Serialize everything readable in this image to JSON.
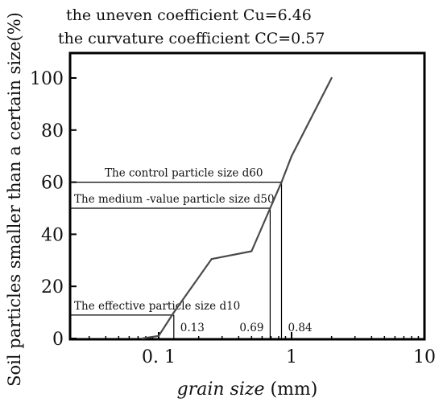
{
  "chart_data": {
    "type": "line",
    "title_lines": [
      "the uneven coefficient Cu=6.46",
      "the curvature coefficient CC=0.57"
    ],
    "xlabel_italic": "grain size",
    "xlabel_unit": "(mm)",
    "ylabel": "Soil particles smaller than a certain size(%)",
    "xscale": "log",
    "xlim": [
      0.02,
      10
    ],
    "ylim": [
      0,
      110
    ],
    "grid": false,
    "xticks": [
      {
        "value": 0.1,
        "label": "0. 1"
      },
      {
        "value": 1,
        "label": "1"
      },
      {
        "value": 10,
        "label": "10"
      }
    ],
    "yticks": [
      0,
      20,
      40,
      60,
      80,
      100
    ],
    "series": [
      {
        "x": [
          0.075,
          0.1,
          0.13,
          0.25,
          0.5,
          0.69,
          0.84,
          1.0,
          2.0
        ],
        "y": [
          0,
          1,
          10,
          30.5,
          33.5,
          50,
          60,
          70,
          100
        ]
      }
    ],
    "reference_lines": [
      {
        "label": "The control particle size d60",
        "percent": 60,
        "size": 0.84,
        "size_label": "0.84"
      },
      {
        "label": "The medium -value particle size d50",
        "percent": 50,
        "size": 0.69,
        "size_label": "0.69"
      },
      {
        "label": "The effective particle size d10",
        "percent": 9,
        "size": 0.13,
        "size_label": "0.13"
      }
    ],
    "line_color": "#4a4a4a"
  }
}
